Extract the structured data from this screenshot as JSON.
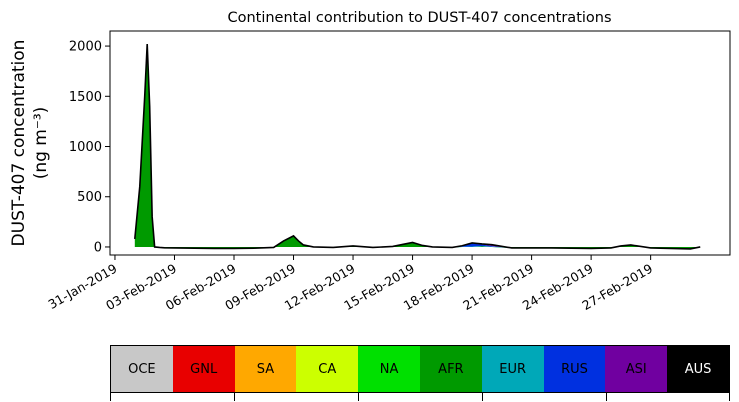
{
  "chart_data": {
    "type": "area",
    "title": "Continental contribution to DUST-407 concentrations",
    "ylabel_line1": "DUST-407 concentration",
    "ylabel_line2": "(ng m⁻³)",
    "xlabel": "",
    "ylim": [
      -80,
      2150
    ],
    "yticks": [
      0,
      500,
      1000,
      1500,
      2000
    ],
    "xticks": [
      "2019-01-31",
      "2019-02-03",
      "2019-02-06",
      "2019-02-09",
      "2019-02-12",
      "2019-02-15",
      "2019-02-18",
      "2019-02-21",
      "2019-02-24",
      "2019-02-27"
    ],
    "xtick_labels": [
      "31-Jan-2019",
      "03-Feb-2019",
      "06-Feb-2019",
      "09-Feb-2019",
      "12-Feb-2019",
      "15-Feb-2019",
      "18-Feb-2019",
      "21-Feb-2019",
      "24-Feb-2019",
      "27-Feb-2019"
    ],
    "xlim": [
      "2019-01-30T18:00",
      "2019-03-03T00:00"
    ],
    "grid": false,
    "x": [
      "2019-02-01T00:00",
      "2019-02-01T06:00",
      "2019-02-01T12:00",
      "2019-02-01T15:00",
      "2019-02-01T18:00",
      "2019-02-01T21:00",
      "2019-02-02T00:00",
      "2019-02-02T06:00",
      "2019-02-02T12:00",
      "2019-02-03T00:00",
      "2019-02-04T00:00",
      "2019-02-05T00:00",
      "2019-02-06T00:00",
      "2019-02-07T00:00",
      "2019-02-08T00:00",
      "2019-02-08T12:00",
      "2019-02-09T00:00",
      "2019-02-09T06:00",
      "2019-02-09T12:00",
      "2019-02-10T00:00",
      "2019-02-11T00:00",
      "2019-02-12T00:00",
      "2019-02-13T00:00",
      "2019-02-14T00:00",
      "2019-02-14T12:00",
      "2019-02-15T00:00",
      "2019-02-15T12:00",
      "2019-02-16T00:00",
      "2019-02-17T00:00",
      "2019-02-17T12:00",
      "2019-02-18T00:00",
      "2019-02-18T12:00",
      "2019-02-19T00:00",
      "2019-02-20T00:00",
      "2019-02-21T00:00",
      "2019-02-22T00:00",
      "2019-02-23T00:00",
      "2019-02-24T00:00",
      "2019-02-25T00:00",
      "2019-02-25T12:00",
      "2019-02-26T00:00",
      "2019-02-27T00:00",
      "2019-02-28T00:00",
      "2019-03-01T00:00",
      "2019-03-01T12:00"
    ],
    "series": [
      {
        "name": "AFR",
        "color": "#009a00",
        "values": [
          80,
          600,
          1500,
          2020,
          1400,
          300,
          0,
          -5,
          -8,
          -10,
          -12,
          -15,
          -15,
          -12,
          -5,
          60,
          110,
          60,
          20,
          0,
          -5,
          10,
          -5,
          5,
          25,
          40,
          10,
          0,
          -5,
          0,
          0,
          5,
          0,
          -10,
          -10,
          -10,
          -12,
          -15,
          -10,
          10,
          20,
          -10,
          -15,
          -20,
          0
        ]
      },
      {
        "name": "EUR",
        "color": "#00a8b8",
        "values": [
          0,
          0,
          0,
          0,
          0,
          0,
          0,
          0,
          0,
          0,
          0,
          0,
          0,
          0,
          0,
          0,
          0,
          0,
          0,
          0,
          0,
          0,
          0,
          0,
          0,
          0,
          0,
          0,
          0,
          2,
          5,
          5,
          3,
          0,
          0,
          0,
          0,
          0,
          0,
          0,
          0,
          0,
          0,
          0,
          0
        ]
      },
      {
        "name": "RUS",
        "color": "#0030e0",
        "values": [
          0,
          0,
          0,
          0,
          0,
          0,
          0,
          0,
          0,
          0,
          0,
          0,
          0,
          0,
          0,
          0,
          0,
          0,
          0,
          0,
          0,
          0,
          0,
          0,
          0,
          5,
          5,
          0,
          0,
          10,
          30,
          15,
          5,
          0,
          0,
          0,
          0,
          0,
          0,
          0,
          0,
          0,
          0,
          0,
          0
        ]
      },
      {
        "name": "ASI",
        "color": "#7000a0",
        "values": [
          0,
          0,
          0,
          0,
          0,
          0,
          0,
          0,
          0,
          0,
          0,
          0,
          0,
          0,
          0,
          0,
          0,
          0,
          0,
          0,
          0,
          0,
          0,
          0,
          0,
          0,
          0,
          0,
          0,
          0,
          5,
          5,
          15,
          0,
          0,
          0,
          0,
          0,
          0,
          0,
          0,
          0,
          0,
          0,
          0
        ]
      }
    ],
    "total_line_color": "#000000",
    "legend": {
      "placement": "bottom",
      "entries": [
        {
          "label": "OCE",
          "color": "#c8c8c8",
          "text_color": "#000000"
        },
        {
          "label": "GNL",
          "color": "#e80000",
          "text_color": "#000000"
        },
        {
          "label": "SA",
          "color": "#ffa800",
          "text_color": "#000000"
        },
        {
          "label": "CA",
          "color": "#ccff00",
          "text_color": "#000000"
        },
        {
          "label": "NA",
          "color": "#00e000",
          "text_color": "#000000"
        },
        {
          "label": "AFR",
          "color": "#009a00",
          "text_color": "#000000"
        },
        {
          "label": "EUR",
          "color": "#00a8b8",
          "text_color": "#000000"
        },
        {
          "label": "RUS",
          "color": "#0030e0",
          "text_color": "#000000"
        },
        {
          "label": "ASI",
          "color": "#7000a0",
          "text_color": "#000000"
        },
        {
          "label": "AUS",
          "color": "#000000",
          "text_color": "#ffffff"
        }
      ]
    }
  }
}
